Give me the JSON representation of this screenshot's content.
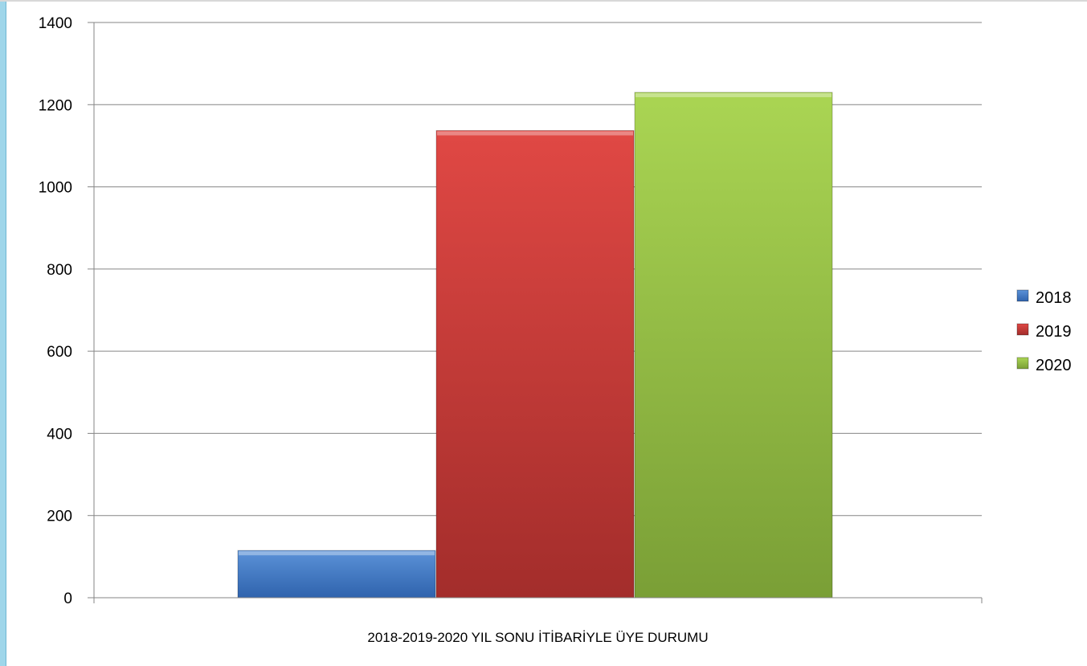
{
  "chart_data": {
    "type": "bar",
    "categories": [
      "2018-2019-2020 YIL SONU İTİBARİYLE  ÜYE  DURUMU"
    ],
    "series": [
      {
        "name": "2018",
        "values": [
          115
        ],
        "color": "#3f77c4"
      },
      {
        "name": "2019",
        "values": [
          1137
        ],
        "color": "#c83a37"
      },
      {
        "name": "2020",
        "values": [
          1230
        ],
        "color": "#92bd45"
      }
    ],
    "ylim": [
      0,
      1400
    ],
    "yticks": [
      "0",
      "200",
      "400",
      "600",
      "800",
      "1000",
      "1200",
      "1400"
    ],
    "title": "",
    "xlabel": "",
    "ylabel": "",
    "grid": true,
    "legend_position": "right"
  }
}
